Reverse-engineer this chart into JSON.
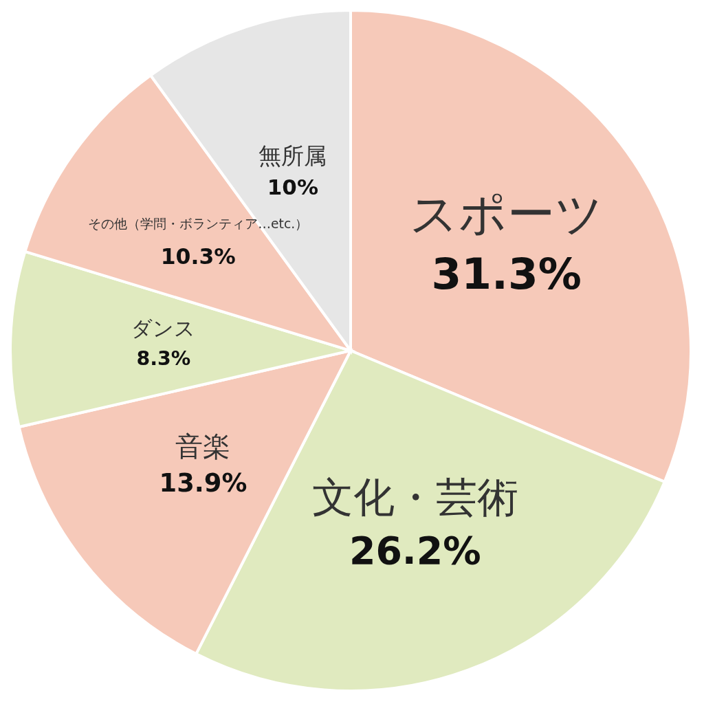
{
  "chart_data": {
    "type": "pie",
    "categories": [
      "スポーツ",
      "文化・芸術",
      "音楽",
      "ダンス",
      "その他（学問・ボランティア…etc.）",
      "無所属"
    ],
    "values": [
      31.3,
      26.2,
      13.9,
      8.3,
      10.3,
      10
    ],
    "colors": [
      "#f6c9b9",
      "#e0eabf",
      "#f6c9b9",
      "#e0eabf",
      "#f6c9b9",
      "#e6e6e6"
    ],
    "value_labels": [
      "31.3%",
      "26.2%",
      "13.9%",
      "8.3%",
      "10.3%",
      "10%"
    ]
  }
}
